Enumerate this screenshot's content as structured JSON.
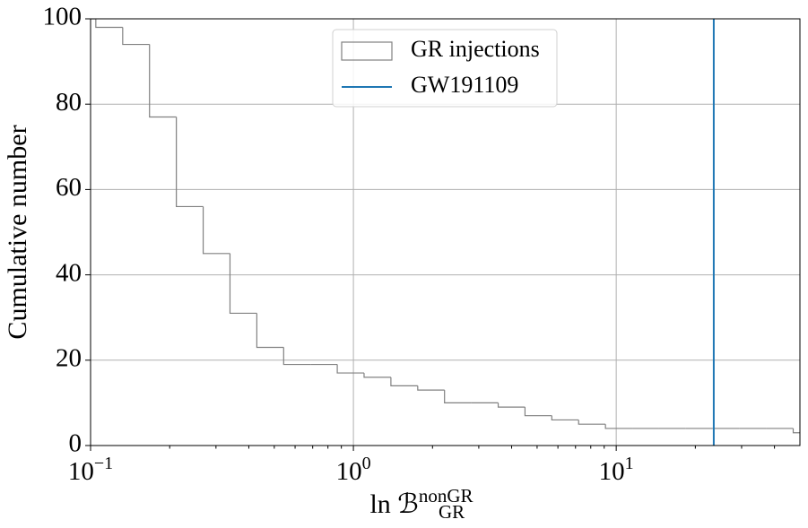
{
  "chart_data": {
    "type": "step-histogram",
    "log_x": true,
    "grid": true,
    "xlabel": "ln ℬ",
    "xlabel_superscript": "nonGR",
    "xlabel_subscript": "GR",
    "ylabel": "Cumulative number",
    "xlim": [
      0.1,
      50
    ],
    "ylim": [
      0,
      100
    ],
    "xticks": [
      {
        "value": 0.1,
        "label": "10−1"
      },
      {
        "value": 1,
        "label": "100"
      },
      {
        "value": 10,
        "label": "101"
      }
    ],
    "xminorticks": [
      0.2,
      0.3,
      0.4,
      0.5,
      0.6,
      0.7,
      0.8,
      0.9,
      2,
      3,
      4,
      5,
      6,
      7,
      8,
      9,
      20,
      30,
      40
    ],
    "yticks": [
      0,
      20,
      40,
      60,
      80,
      100
    ],
    "legend": "upper center",
    "series": [
      {
        "name": "GR injections",
        "color": "#808080",
        "bins": [
          0.0828,
          0.1047,
          0.1325,
          0.1676,
          0.212,
          0.2682,
          0.3392,
          0.4291,
          0.5428,
          0.6866,
          0.8682,
          1.098,
          1.389,
          1.757,
          2.222,
          2.811,
          3.556,
          4.497,
          5.687,
          7.194,
          9.1,
          11.51,
          14.56,
          18.41,
          23.29,
          29.46,
          37.26,
          47.14,
          59.63
        ],
        "values": [
          100,
          98,
          94,
          77,
          56,
          45,
          31,
          23,
          19,
          19,
          17,
          16,
          14,
          13,
          10,
          10,
          9,
          7,
          6,
          5,
          4,
          4,
          4,
          4,
          4,
          4,
          4,
          3
        ]
      },
      {
        "name": "GW191109",
        "color": "#1f77b4",
        "type": "vline",
        "x": 23.5
      }
    ]
  }
}
